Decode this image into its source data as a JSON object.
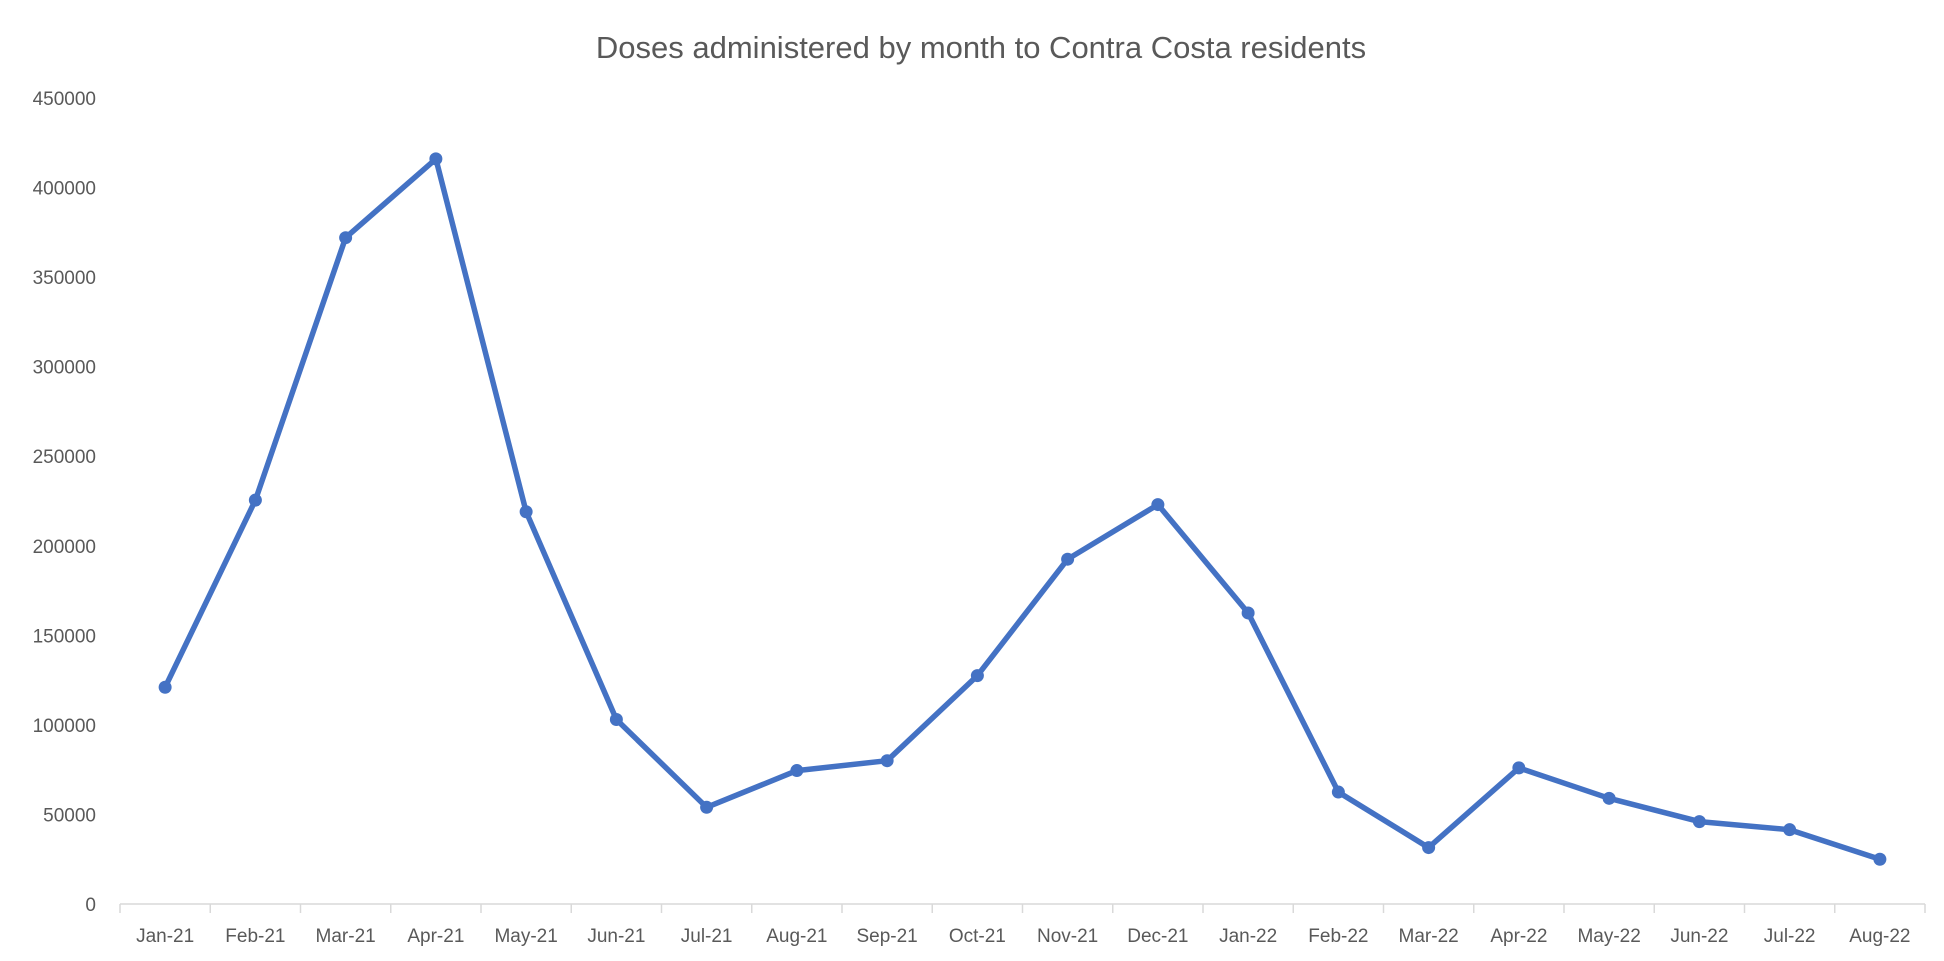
{
  "chart_data": {
    "type": "line",
    "title": "Doses administered by month to Contra Costa residents",
    "xlabel": "",
    "ylabel": "",
    "categories": [
      "Jan-21",
      "Feb-21",
      "Mar-21",
      "Apr-21",
      "May-21",
      "Jun-21",
      "Jul-21",
      "Aug-21",
      "Sep-21",
      "Oct-21",
      "Nov-21",
      "Dec-21",
      "Jan-22",
      "Feb-22",
      "Mar-22",
      "Apr-22",
      "May-22",
      "Jun-22",
      "Jul-22",
      "Aug-22"
    ],
    "series": [
      {
        "values": [
          121000,
          225500,
          372000,
          416000,
          219000,
          103000,
          54000,
          74500,
          80000,
          127500,
          192500,
          223000,
          162500,
          62500,
          31500,
          76000,
          59000,
          46000,
          41500,
          25000
        ],
        "color": "#4472c4"
      }
    ],
    "ylim": [
      0,
      450000
    ],
    "yticks": [
      "0",
      "50000",
      "100000",
      "150000",
      "200000",
      "250000",
      "300000",
      "350000",
      "400000",
      "450000"
    ],
    "grid": false,
    "legend": "none",
    "marker": "circle"
  }
}
